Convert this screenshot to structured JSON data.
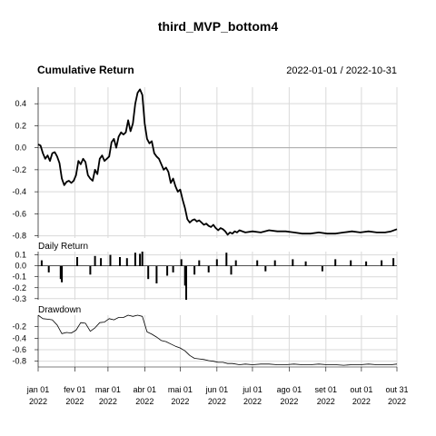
{
  "chart_data": {
    "type": "line",
    "title": "third_MVP_bottom4",
    "date_range": "2022-01-01 / 2022-10-31",
    "panels": [
      {
        "name": "cumulative_return",
        "title": "Cumulative Return",
        "type": "line",
        "ylim": [
          -0.82,
          0.55
        ],
        "yticks": [
          0.4,
          0.2,
          0.0,
          -0.2,
          -0.4,
          -0.6,
          -0.8
        ],
        "ytick_labels": [
          "0.4",
          "0.2",
          "0.0",
          "-0.2",
          "-0.4",
          "-0.6",
          "-0.8"
        ],
        "baseline": 0.0,
        "series": [
          {
            "x": [
              "2022-01-01",
              "2022-01-03",
              "2022-01-05",
              "2022-01-07",
              "2022-01-09",
              "2022-01-11",
              "2022-01-13",
              "2022-01-15",
              "2022-01-17",
              "2022-01-19",
              "2022-01-21",
              "2022-01-23",
              "2022-01-25",
              "2022-01-27",
              "2022-01-29",
              "2022-01-31",
              "2022-02-02",
              "2022-02-04",
              "2022-02-06",
              "2022-02-08",
              "2022-02-10",
              "2022-02-12",
              "2022-02-14",
              "2022-02-16",
              "2022-02-18",
              "2022-02-20",
              "2022-02-22",
              "2022-02-24",
              "2022-02-26",
              "2022-02-28",
              "2022-03-02",
              "2022-03-04",
              "2022-03-06",
              "2022-03-08",
              "2022-03-10",
              "2022-03-12",
              "2022-03-14",
              "2022-03-16",
              "2022-03-18",
              "2022-03-20",
              "2022-03-22",
              "2022-03-24",
              "2022-03-26",
              "2022-03-28",
              "2022-03-30",
              "2022-04-01",
              "2022-04-03",
              "2022-04-05",
              "2022-04-07",
              "2022-04-09",
              "2022-04-11",
              "2022-04-13",
              "2022-04-15",
              "2022-04-17",
              "2022-04-19",
              "2022-04-21",
              "2022-04-23",
              "2022-04-25",
              "2022-04-27",
              "2022-04-29",
              "2022-05-01",
              "2022-05-03",
              "2022-05-05",
              "2022-05-07",
              "2022-05-09",
              "2022-05-11",
              "2022-05-13",
              "2022-05-15",
              "2022-05-17",
              "2022-05-19",
              "2022-05-21",
              "2022-05-23",
              "2022-05-25",
              "2022-05-27",
              "2022-05-29",
              "2022-05-31",
              "2022-06-02",
              "2022-06-04",
              "2022-06-06",
              "2022-06-08",
              "2022-06-10",
              "2022-06-12",
              "2022-06-14",
              "2022-06-16",
              "2022-06-18",
              "2022-06-20",
              "2022-06-25",
              "2022-07-01",
              "2022-07-08",
              "2022-07-15",
              "2022-07-22",
              "2022-07-29",
              "2022-08-05",
              "2022-08-12",
              "2022-08-19",
              "2022-08-26",
              "2022-09-02",
              "2022-09-09",
              "2022-09-16",
              "2022-09-23",
              "2022-09-30",
              "2022-10-07",
              "2022-10-14",
              "2022-10-21",
              "2022-10-26",
              "2022-10-31"
            ],
            "values": [
              0.03,
              0.02,
              -0.05,
              -0.1,
              -0.07,
              -0.12,
              -0.05,
              -0.04,
              -0.08,
              -0.14,
              -0.28,
              -0.34,
              -0.31,
              -0.3,
              -0.32,
              -0.3,
              -0.25,
              -0.12,
              -0.15,
              -0.1,
              -0.13,
              -0.25,
              -0.28,
              -0.3,
              -0.2,
              -0.24,
              -0.1,
              -0.07,
              -0.12,
              -0.1,
              -0.08,
              0.05,
              0.08,
              0.0,
              0.1,
              0.14,
              0.12,
              0.14,
              0.25,
              0.15,
              0.22,
              0.4,
              0.5,
              0.53,
              0.48,
              0.22,
              0.08,
              0.04,
              0.06,
              -0.05,
              -0.08,
              -0.1,
              -0.15,
              -0.2,
              -0.18,
              -0.22,
              -0.32,
              -0.28,
              -0.35,
              -0.4,
              -0.38,
              -0.47,
              -0.55,
              -0.65,
              -0.68,
              -0.66,
              -0.65,
              -0.67,
              -0.66,
              -0.68,
              -0.7,
              -0.69,
              -0.71,
              -0.72,
              -0.7,
              -0.73,
              -0.75,
              -0.73,
              -0.74,
              -0.76,
              -0.79,
              -0.77,
              -0.78,
              -0.76,
              -0.77,
              -0.75,
              -0.77,
              -0.76,
              -0.77,
              -0.75,
              -0.76,
              -0.76,
              -0.77,
              -0.78,
              -0.78,
              -0.77,
              -0.78,
              -0.78,
              -0.77,
              -0.76,
              -0.77,
              -0.76,
              -0.77,
              -0.77,
              -0.76,
              -0.74
            ]
          }
        ]
      },
      {
        "name": "daily_return",
        "title": "Daily Return",
        "type": "bar",
        "ylim": [
          -0.31,
          0.13
        ],
        "yticks": [
          0.1,
          0.0,
          -0.1,
          -0.2,
          -0.3
        ],
        "ytick_labels": [
          "0.1",
          "0.0",
          "-0.1",
          "-0.2",
          "-0.3"
        ],
        "series": [
          {
            "x": [
              "2022-01-04",
              "2022-01-10",
              "2022-01-20",
              "2022-01-21",
              "2022-02-03",
              "2022-02-14",
              "2022-02-18",
              "2022-02-23",
              "2022-03-03",
              "2022-03-11",
              "2022-03-17",
              "2022-03-24",
              "2022-03-28",
              "2022-03-30",
              "2022-04-04",
              "2022-04-11",
              "2022-04-20",
              "2022-04-25",
              "2022-05-02",
              "2022-05-05",
              "2022-05-06",
              "2022-05-13",
              "2022-05-17",
              "2022-05-25",
              "2022-06-01",
              "2022-06-09",
              "2022-06-13",
              "2022-06-17",
              "2022-07-05",
              "2022-07-12",
              "2022-07-20",
              "2022-08-04",
              "2022-08-15",
              "2022-08-29",
              "2022-09-09",
              "2022-09-22",
              "2022-10-05",
              "2022-10-18",
              "2022-10-28"
            ],
            "values": [
              0.05,
              -0.06,
              -0.12,
              -0.15,
              0.08,
              -0.08,
              0.09,
              0.07,
              0.1,
              0.08,
              0.07,
              0.12,
              0.11,
              0.13,
              -0.12,
              -0.16,
              -0.09,
              -0.06,
              0.06,
              -0.18,
              -0.31,
              -0.08,
              0.05,
              -0.06,
              0.06,
              0.12,
              -0.08,
              0.05,
              0.05,
              -0.05,
              0.05,
              0.06,
              0.04,
              -0.05,
              0.06,
              0.05,
              0.04,
              0.05,
              0.07
            ]
          }
        ]
      },
      {
        "name": "drawdown",
        "title": "Drawdown",
        "type": "line",
        "ylim": [
          -0.9,
          0.0
        ],
        "yticks": [
          -0.2,
          -0.4,
          -0.6,
          -0.8
        ],
        "ytick_labels": [
          "-0.2",
          "-0.4",
          "-0.6",
          "-0.8"
        ],
        "series": [
          {
            "x": [
              "2022-01-01",
              "2022-01-05",
              "2022-01-09",
              "2022-01-13",
              "2022-01-17",
              "2022-01-21",
              "2022-01-25",
              "2022-01-29",
              "2022-02-02",
              "2022-02-06",
              "2022-02-10",
              "2022-02-14",
              "2022-02-18",
              "2022-02-22",
              "2022-02-26",
              "2022-03-02",
              "2022-03-06",
              "2022-03-10",
              "2022-03-14",
              "2022-03-18",
              "2022-03-22",
              "2022-03-26",
              "2022-03-30",
              "2022-04-03",
              "2022-04-07",
              "2022-04-11",
              "2022-04-15",
              "2022-04-19",
              "2022-04-23",
              "2022-04-27",
              "2022-05-01",
              "2022-05-05",
              "2022-05-09",
              "2022-05-13",
              "2022-05-17",
              "2022-05-21",
              "2022-05-25",
              "2022-05-29",
              "2022-06-02",
              "2022-06-06",
              "2022-06-10",
              "2022-06-14",
              "2022-06-20",
              "2022-06-25",
              "2022-07-01",
              "2022-07-08",
              "2022-07-15",
              "2022-07-22",
              "2022-07-29",
              "2022-08-05",
              "2022-08-12",
              "2022-08-19",
              "2022-08-26",
              "2022-09-02",
              "2022-09-09",
              "2022-09-16",
              "2022-09-23",
              "2022-09-30",
              "2022-10-07",
              "2022-10-14",
              "2022-10-21",
              "2022-10-26",
              "2022-10-31"
            ],
            "values": [
              0.0,
              -0.06,
              -0.07,
              -0.08,
              -0.17,
              -0.32,
              -0.3,
              -0.31,
              -0.26,
              -0.13,
              -0.14,
              -0.28,
              -0.22,
              -0.13,
              -0.12,
              -0.06,
              -0.08,
              -0.04,
              -0.04,
              0.0,
              -0.02,
              0.0,
              -0.02,
              -0.29,
              -0.33,
              -0.38,
              -0.44,
              -0.46,
              -0.5,
              -0.54,
              -0.57,
              -0.62,
              -0.7,
              -0.75,
              -0.76,
              -0.77,
              -0.79,
              -0.8,
              -0.82,
              -0.82,
              -0.84,
              -0.84,
              -0.86,
              -0.85,
              -0.86,
              -0.85,
              -0.85,
              -0.86,
              -0.86,
              -0.85,
              -0.86,
              -0.86,
              -0.85,
              -0.86,
              -0.86,
              -0.87,
              -0.86,
              -0.86,
              -0.85,
              -0.86,
              -0.86,
              -0.86,
              -0.85
            ]
          }
        ]
      }
    ],
    "xaxis": {
      "start": "2022-01-01",
      "end": "2022-10-31",
      "ticks": [
        {
          "date": "2022-01-01",
          "label": "jan 01",
          "year": "2022"
        },
        {
          "date": "2022-02-01",
          "label": "fev 01",
          "year": "2022"
        },
        {
          "date": "2022-03-01",
          "label": "mar 01",
          "year": "2022"
        },
        {
          "date": "2022-04-01",
          "label": "abr 01",
          "year": "2022"
        },
        {
          "date": "2022-05-01",
          "label": "mai 01",
          "year": "2022"
        },
        {
          "date": "2022-06-01",
          "label": "jun 01",
          "year": "2022"
        },
        {
          "date": "2022-07-01",
          "label": "jul 01",
          "year": "2022"
        },
        {
          "date": "2022-08-01",
          "label": "ago 01",
          "year": "2022"
        },
        {
          "date": "2022-09-01",
          "label": "set 01",
          "year": "2022"
        },
        {
          "date": "2022-10-01",
          "label": "out 01",
          "year": "2022"
        },
        {
          "date": "2022-10-31",
          "label": "out 31",
          "year": "2022"
        }
      ]
    },
    "grid": true,
    "colors": {
      "line": "#000000",
      "grid": "#d9d9d9",
      "baseline": "#aaaaaa",
      "axis": "#000000"
    }
  }
}
